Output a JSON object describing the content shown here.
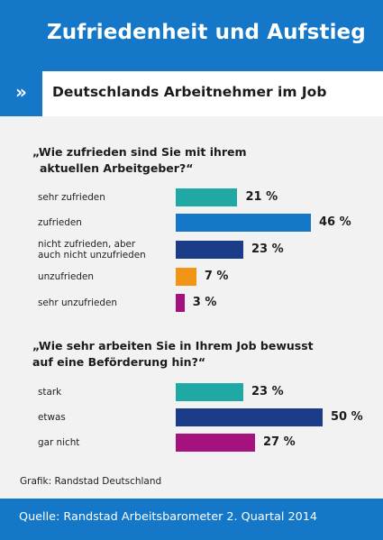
{
  "header": {
    "title": "Zufriedenheit und Aufstieg"
  },
  "subtitle_band": {
    "chevron": "»",
    "subtitle": "Deutschlands Arbeitnehmer im Job"
  },
  "colors": {
    "header_blue": "#1477c8",
    "teal": "#1fa8a4",
    "blue": "#1477c8",
    "navy": "#1a3c89",
    "orange": "#f29416",
    "purple": "#a5127d",
    "background": "#f2f2f2"
  },
  "chart_data": [
    {
      "type": "bar",
      "orientation": "horizontal",
      "title_lines": [
        "„Wie zufrieden sind Sie mit ihrem",
        "aktuellen Arbeitgeber?“"
      ],
      "categories": [
        [
          "sehr zufrieden"
        ],
        [
          "zufrieden"
        ],
        [
          "nicht zufrieden, aber",
          "auch nicht unzufrieden"
        ],
        [
          "unzufrieden"
        ],
        [
          "sehr unzufrieden"
        ]
      ],
      "values": [
        21,
        46,
        23,
        7,
        3
      ],
      "value_labels": [
        "21 %",
        "46 %",
        "23 %",
        "7 %",
        "3 %"
      ],
      "colors": [
        "#1fa8a4",
        "#1477c8",
        "#1a3c89",
        "#f29416",
        "#a5127d"
      ],
      "unit": "%",
      "xlim": [
        0,
        50
      ]
    },
    {
      "type": "bar",
      "orientation": "horizontal",
      "title_lines": [
        "„Wie sehr arbeiten Sie in Ihrem Job bewusst",
        "auf eine Beförderung hin?“"
      ],
      "categories": [
        [
          "stark"
        ],
        [
          "etwas"
        ],
        [
          "gar nicht"
        ]
      ],
      "values": [
        23,
        50,
        27
      ],
      "value_labels": [
        "23 %",
        "50 %",
        "27 %"
      ],
      "colors": [
        "#1fa8a4",
        "#1a3c89",
        "#a5127d"
      ],
      "unit": "%",
      "xlim": [
        0,
        50
      ]
    }
  ],
  "credit": "Grafik: Randstad Deutschland",
  "footer": {
    "source": "Quelle: Randstad Arbeitsbarometer 2. Quartal 2014"
  }
}
